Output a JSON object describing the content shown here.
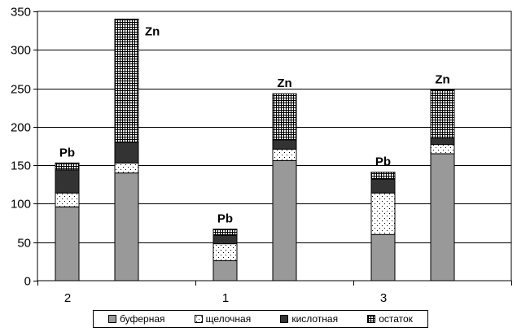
{
  "chart_data": {
    "type": "bar",
    "stacked": true,
    "ylim": [
      0,
      350
    ],
    "yticks": [
      0,
      50,
      100,
      150,
      200,
      250,
      300,
      350
    ],
    "grid": true,
    "legend_position": "bottom",
    "group_labels": [
      "2",
      "1",
      "3"
    ],
    "bars": [
      {
        "group": 0,
        "label": "Pb",
        "values": [
          96,
          18,
          30,
          9
        ]
      },
      {
        "group": 0,
        "label": "Zn",
        "values": [
          140,
          13,
          27,
          160
        ]
      },
      {
        "group": 1,
        "label": "Pb",
        "values": [
          26,
          22,
          11,
          8
        ]
      },
      {
        "group": 1,
        "label": "Zn",
        "values": [
          156,
          15,
          12,
          60
        ]
      },
      {
        "group": 2,
        "label": "Pb",
        "values": [
          60,
          54,
          18,
          9
        ]
      },
      {
        "group": 2,
        "label": "Zn",
        "values": [
          165,
          12,
          8,
          63
        ]
      }
    ],
    "series": [
      {
        "name": "буферная",
        "color": "#999999",
        "pattern": "solid"
      },
      {
        "name": "щелочная",
        "color": "#ffffff",
        "pattern": "dots"
      },
      {
        "name": "кислотная",
        "color": "#333333",
        "pattern": "solid"
      },
      {
        "name": "остаток",
        "color": "#ffffff",
        "pattern": "grid"
      }
    ]
  },
  "legend": {
    "items": [
      "буферная",
      "щелочная",
      "кислотная",
      "остаток"
    ]
  }
}
